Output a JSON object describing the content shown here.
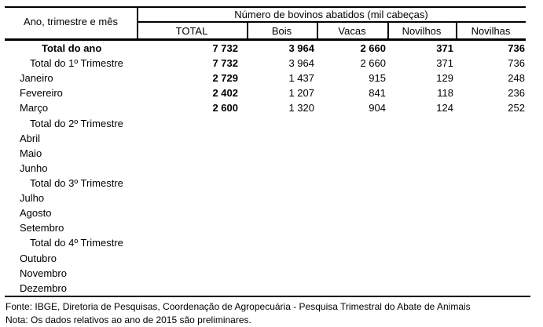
{
  "table": {
    "row_header_label": "Ano, trimestre e mês",
    "span_header": "Número de bovinos abatidos (mil cabeças)",
    "columns": [
      "TOTAL",
      "Bois",
      "Vacas",
      "Novilhos",
      "Novilhas"
    ],
    "rows": [
      {
        "label": "Total do ano",
        "indent": 2,
        "bold": true,
        "values": [
          "7 732",
          "3 964",
          "2 660",
          "371",
          "736"
        ]
      },
      {
        "label": "Total do 1º Trimestre",
        "indent": 1,
        "bold": false,
        "values": [
          "7 732",
          "3 964",
          "2 660",
          "371",
          "736"
        ]
      },
      {
        "label": "Janeiro",
        "indent": 0,
        "bold": false,
        "values": [
          "2 729",
          "1 437",
          "915",
          "129",
          "248"
        ]
      },
      {
        "label": "Fevereiro",
        "indent": 0,
        "bold": false,
        "values": [
          "2 402",
          "1 207",
          "841",
          "118",
          "236"
        ]
      },
      {
        "label": "Março",
        "indent": 0,
        "bold": false,
        "values": [
          "2 600",
          "1 320",
          "904",
          "124",
          "252"
        ]
      },
      {
        "label": "Total do 2º Trimestre",
        "indent": 1,
        "bold": false,
        "values": []
      },
      {
        "label": "Abril",
        "indent": 0,
        "bold": false,
        "values": []
      },
      {
        "label": "Maio",
        "indent": 0,
        "bold": false,
        "values": []
      },
      {
        "label": "Junho",
        "indent": 0,
        "bold": false,
        "values": []
      },
      {
        "label": "Total do 3º Trimestre",
        "indent": 1,
        "bold": false,
        "values": []
      },
      {
        "label": "Julho",
        "indent": 0,
        "bold": false,
        "values": []
      },
      {
        "label": "Agosto",
        "indent": 0,
        "bold": false,
        "values": []
      },
      {
        "label": "Setembro",
        "indent": 0,
        "bold": false,
        "values": []
      },
      {
        "label": "Total do 4º Trimestre",
        "indent": 1,
        "bold": false,
        "values": []
      },
      {
        "label": "Outubro",
        "indent": 0,
        "bold": false,
        "values": []
      },
      {
        "label": "Novembro",
        "indent": 0,
        "bold": false,
        "values": []
      },
      {
        "label": "Dezembro",
        "indent": 0,
        "bold": false,
        "values": []
      }
    ],
    "footer": {
      "fonte": "Fonte: IBGE, Diretoria de Pesquisas, Coordenação de Agropecuária - Pesquisa Trimestral do Abate de Animais",
      "nota": "Nota: Os dados relativos ao ano de 2015 são preliminares."
    }
  }
}
